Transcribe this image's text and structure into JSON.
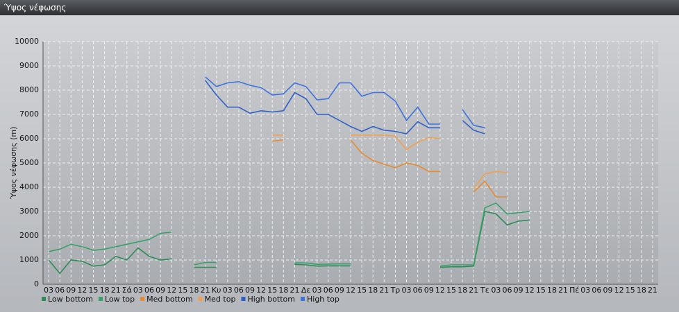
{
  "window_title": "Ύψος νέφωσης",
  "chart_data": {
    "type": "line",
    "y_label": "Ύψος νέφωσης (m)",
    "categories": [
      "03",
      "06",
      "09",
      "12",
      "15",
      "18",
      "21",
      "Σά",
      "03",
      "06",
      "09",
      "12",
      "15",
      "18",
      "21",
      "Κυ",
      "03",
      "06",
      "09",
      "12",
      "15",
      "18",
      "21",
      "Δε",
      "03",
      "06",
      "09",
      "12",
      "15",
      "18",
      "21",
      "Τρ",
      "03",
      "06",
      "09",
      "12",
      "15",
      "18",
      "21",
      "Τε",
      "03",
      "06",
      "09",
      "12",
      "15",
      "18",
      "21",
      "Πέ",
      "03",
      "06",
      "09",
      "12",
      "15",
      "18",
      "21"
    ],
    "ylim": [
      0,
      10000
    ],
    "yticks": [
      0,
      1000,
      2000,
      3000,
      4000,
      5000,
      6000,
      7000,
      8000,
      9000,
      10000
    ],
    "grid": true,
    "legend": "bottom",
    "series": [
      {
        "name": "Low bottom",
        "color": "#2e8b57",
        "values": [
          1000,
          450,
          1000,
          950,
          750,
          800,
          1150,
          1000,
          1500,
          1150,
          1000,
          1050,
          null,
          700,
          700,
          700,
          null,
          null,
          null,
          null,
          null,
          null,
          820,
          800,
          750,
          760,
          760,
          760,
          null,
          null,
          null,
          null,
          null,
          null,
          null,
          700,
          720,
          720,
          750,
          3000,
          2900,
          2450,
          2600,
          2650,
          null,
          null,
          null,
          null,
          null,
          null,
          null,
          null,
          null,
          null,
          null
        ]
      },
      {
        "name": "Low top",
        "color": "#3aa06a",
        "values": [
          1350,
          1450,
          1650,
          1550,
          1400,
          1450,
          1550,
          1650,
          1750,
          1850,
          2100,
          2150,
          null,
          800,
          900,
          900,
          null,
          null,
          null,
          null,
          null,
          null,
          880,
          880,
          820,
          830,
          840,
          840,
          null,
          null,
          null,
          null,
          null,
          null,
          null,
          750,
          800,
          800,
          800,
          3150,
          3350,
          2900,
          2950,
          3000,
          null,
          null,
          null,
          null,
          null,
          null,
          null,
          null,
          null,
          null,
          null
        ]
      },
      {
        "name": "Med bottom",
        "color": "#e88a30",
        "values": [
          null,
          null,
          null,
          null,
          null,
          null,
          null,
          null,
          null,
          null,
          null,
          null,
          null,
          null,
          null,
          null,
          null,
          null,
          null,
          null,
          5900,
          5950,
          null,
          null,
          null,
          null,
          null,
          5950,
          5400,
          5100,
          4950,
          4800,
          5000,
          4900,
          4650,
          4650,
          null,
          null,
          3800,
          4250,
          3600,
          3600,
          null,
          null,
          null,
          null,
          null,
          null,
          null,
          null,
          null,
          null,
          null,
          null,
          null
        ]
      },
      {
        "name": "Med top",
        "color": "#f0a050",
        "values": [
          null,
          null,
          null,
          null,
          null,
          null,
          null,
          null,
          null,
          null,
          null,
          null,
          null,
          null,
          null,
          null,
          null,
          null,
          null,
          null,
          6150,
          6150,
          null,
          null,
          null,
          null,
          null,
          6150,
          6150,
          6150,
          6150,
          6100,
          5550,
          5850,
          6050,
          6000,
          null,
          null,
          3950,
          4550,
          4650,
          4600,
          null,
          null,
          null,
          null,
          null,
          null,
          null,
          null,
          null,
          null,
          null,
          null,
          null
        ]
      },
      {
        "name": "High bottom",
        "color": "#2f5fc8",
        "values": [
          null,
          null,
          null,
          null,
          null,
          null,
          null,
          null,
          null,
          null,
          null,
          null,
          null,
          null,
          8400,
          7800,
          7300,
          7300,
          7050,
          7150,
          7100,
          7150,
          7900,
          7650,
          7000,
          7000,
          6750,
          6500,
          6300,
          6500,
          6350,
          6300,
          6200,
          6700,
          6450,
          6450,
          null,
          6750,
          6350,
          6200,
          null,
          null,
          null,
          null,
          null,
          null,
          null,
          null,
          null,
          null,
          null,
          null,
          null,
          null,
          null
        ]
      },
      {
        "name": "High top",
        "color": "#3c72e0",
        "values": [
          null,
          null,
          null,
          null,
          null,
          null,
          null,
          null,
          null,
          null,
          null,
          null,
          null,
          null,
          8550,
          8150,
          8300,
          8350,
          8200,
          8100,
          7800,
          7850,
          8300,
          8150,
          7600,
          7650,
          8300,
          8300,
          7750,
          7900,
          7900,
          7550,
          6750,
          7300,
          6600,
          6600,
          null,
          7200,
          6550,
          6450,
          null,
          null,
          null,
          null,
          null,
          null,
          null,
          null,
          null,
          null,
          null,
          null,
          null,
          null,
          null
        ]
      }
    ]
  }
}
